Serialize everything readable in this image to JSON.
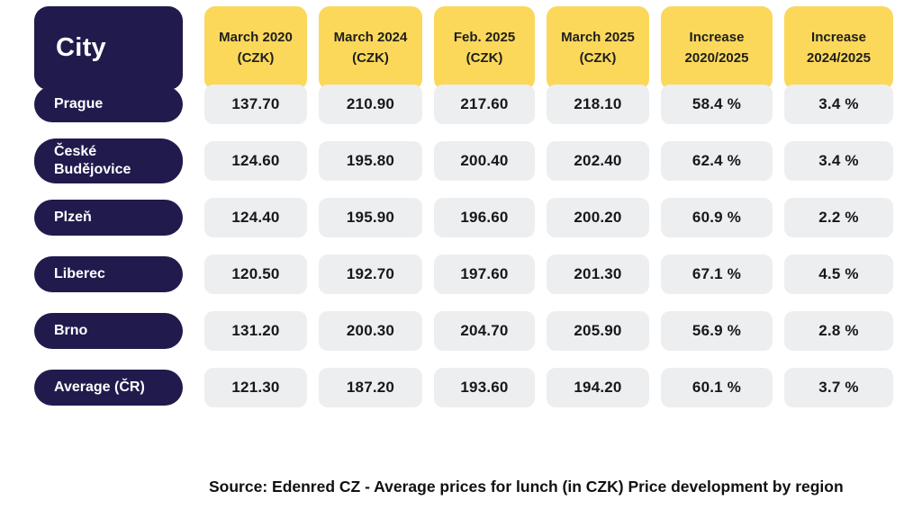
{
  "colors": {
    "navy": "#211a4d",
    "yellow": "#fbd85a",
    "cell_gray": "#edeef0",
    "background": "#ffffff"
  },
  "table": {
    "header": {
      "city": "City",
      "columns": [
        {
          "line1": "March 2020",
          "line2": "(CZK)"
        },
        {
          "line1": "March 2024",
          "line2": "(CZK)"
        },
        {
          "line1": "Feb. 2025",
          "line2": "(CZK)"
        },
        {
          "line1": "March 2025",
          "line2": "(CZK)"
        },
        {
          "line1": "Increase",
          "line2": "2020/2025"
        },
        {
          "line1": "Increase",
          "line2": "2024/2025"
        }
      ]
    },
    "rows": [
      {
        "city": "Prague",
        "values": [
          "137.70",
          "210.90",
          "217.60",
          "218.10",
          "58.4 %",
          "3.4 %"
        ]
      },
      {
        "city": "České Budějovice",
        "values": [
          "124.60",
          "195.80",
          "200.40",
          "202.40",
          "62.4 %",
          "3.4 %"
        ]
      },
      {
        "city": "Plzeň",
        "values": [
          "124.40",
          "195.90",
          "196.60",
          "200.20",
          "60.9 %",
          "2.2 %"
        ]
      },
      {
        "city": "Liberec",
        "values": [
          "120.50",
          "192.70",
          "197.60",
          "201.30",
          "67.1 %",
          "4.5 %"
        ]
      },
      {
        "city": "Brno",
        "values": [
          "131.20",
          "200.30",
          "204.70",
          "205.90",
          "56.9 %",
          "2.8 %"
        ]
      },
      {
        "city": "Average (ČR)",
        "values": [
          "121.30",
          "187.20",
          "193.60",
          "194.20",
          "60.1 %",
          "3.7 %"
        ]
      }
    ]
  },
  "footer": {
    "text": "Source: Edenred CZ - Average prices for lunch (in CZK) Price development by region"
  },
  "chart_data": {
    "type": "table",
    "title": "Average prices for lunch (in CZK) - Price development by region",
    "source": "Edenred CZ",
    "columns": [
      "City",
      "March 2020 (CZK)",
      "March 2024 (CZK)",
      "Feb. 2025 (CZK)",
      "March 2025 (CZK)",
      "Increase 2020/2025",
      "Increase 2024/2025"
    ],
    "rows": [
      [
        "Prague",
        137.7,
        210.9,
        217.6,
        218.1,
        "58.4 %",
        "3.4 %"
      ],
      [
        "České Budějovice",
        124.6,
        195.8,
        200.4,
        202.4,
        "62.4 %",
        "3.4 %"
      ],
      [
        "Plzeň",
        124.4,
        195.9,
        196.6,
        200.2,
        "60.9 %",
        "2.2 %"
      ],
      [
        "Liberec",
        120.5,
        192.7,
        197.6,
        201.3,
        "67.1 %",
        "4.5 %"
      ],
      [
        "Brno",
        131.2,
        200.3,
        204.7,
        205.9,
        "56.9 %",
        "2.8 %"
      ],
      [
        "Average (ČR)",
        121.3,
        187.2,
        193.6,
        194.2,
        "60.1 %",
        "3.7 %"
      ]
    ]
  }
}
